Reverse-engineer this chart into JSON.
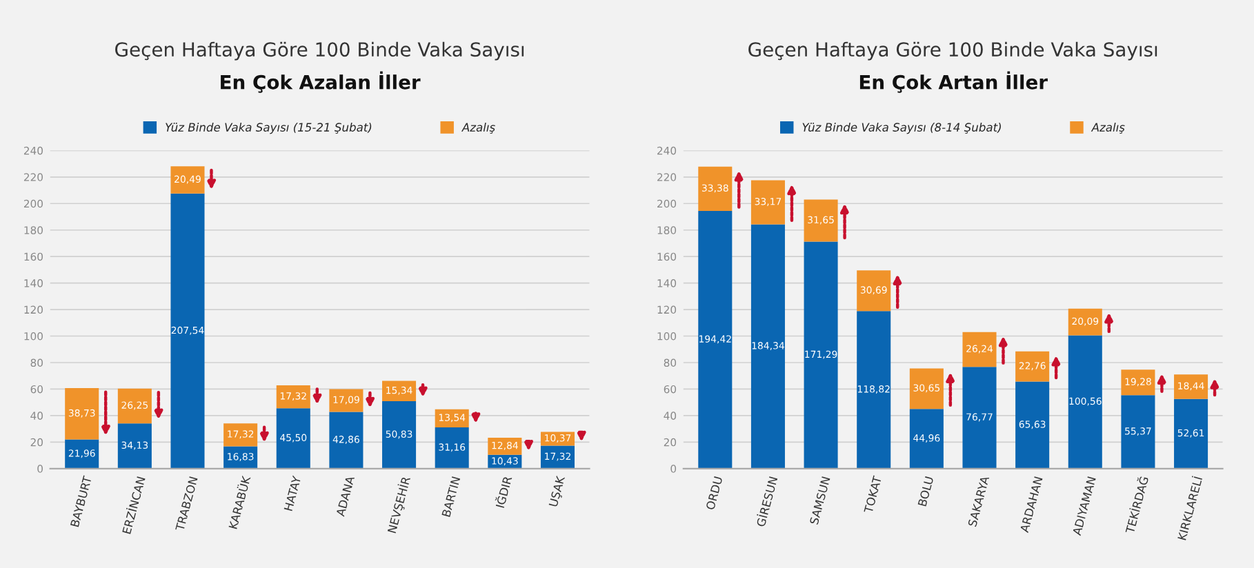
{
  "chart_data": [
    {
      "type": "bar",
      "title": "Geçen Haftaya Göre 100 Binde Vaka Sayısı",
      "subtitle": "En Çok Azalan İller",
      "stacked": true,
      "legend": "top",
      "grid": "y",
      "categories": [
        "BAYBURT",
        "ERZİNCAN",
        "TRABZON",
        "KARABÜK",
        "HATAY",
        "ADANA",
        "NEVŞEHİR",
        "BARTIN",
        "IĞDIR",
        "UŞAK"
      ],
      "series": [
        {
          "name": "Yüz Binde Vaka Sayısı (15-21 Şubat)",
          "color": "#0a66b2",
          "values": [
            21.96,
            34.13,
            207.54,
            16.83,
            45.5,
            42.86,
            50.83,
            31.16,
            10.43,
            17.32
          ],
          "value_labels": [
            "21,96",
            "34,13",
            "207,54",
            "16,83",
            "45,50",
            "42,86",
            "50,83",
            "31,16",
            "10,43",
            "17,32"
          ]
        },
        {
          "name": "Azalış",
          "color": "#f0932a",
          "values": [
            38.73,
            26.25,
            20.49,
            17.32,
            17.32,
            17.09,
            15.34,
            13.54,
            12.84,
            10.37
          ],
          "value_labels": [
            "38,73",
            "26,25",
            "20,49",
            "17,32",
            "17,32",
            "17,09",
            "15,34",
            "13,54",
            "12,84",
            "10,37"
          ]
        }
      ],
      "ylim": [
        0,
        240
      ],
      "yticks": [
        0,
        20,
        40,
        60,
        80,
        100,
        120,
        140,
        160,
        180,
        200,
        220,
        240
      ]
    },
    {
      "type": "bar",
      "title": "Geçen Haftaya Göre 100 Binde Vaka Sayısı",
      "subtitle": "En Çok Artan İller",
      "stacked": true,
      "legend": "top",
      "grid": "y",
      "categories": [
        "ORDU",
        "GİRESUN",
        "SAMSUN",
        "TOKAT",
        "BOLU",
        "SAKARYA",
        "ARDAHAN",
        "ADIYAMAN",
        "TEKİRDAĞ",
        "KIRKLARELİ"
      ],
      "series": [
        {
          "name": "Yüz Binde Vaka Sayısı (8-14 Şubat)",
          "color": "#0a66b2",
          "values": [
            194.42,
            184.34,
            171.29,
            118.82,
            44.96,
            76.77,
            65.63,
            100.56,
            55.37,
            52.61
          ],
          "value_labels": [
            "194,42",
            "184,34",
            "171,29",
            "118,82",
            "44,96",
            "76,77",
            "65,63",
            "100,56",
            "55,37",
            "52,61"
          ]
        },
        {
          "name": "Azalış",
          "color": "#f0932a",
          "values": [
            33.38,
            33.17,
            31.65,
            30.69,
            30.65,
            26.24,
            22.76,
            20.09,
            19.28,
            18.44
          ],
          "value_labels": [
            "33,38",
            "33,17",
            "31,65",
            "30,69",
            "30,65",
            "26,24",
            "22,76",
            "20,09",
            "19,28",
            "18,44"
          ]
        }
      ],
      "ylim": [
        0,
        240
      ],
      "yticks": [
        0,
        20,
        40,
        60,
        80,
        100,
        120,
        140,
        160,
        180,
        200,
        220,
        240
      ]
    }
  ]
}
